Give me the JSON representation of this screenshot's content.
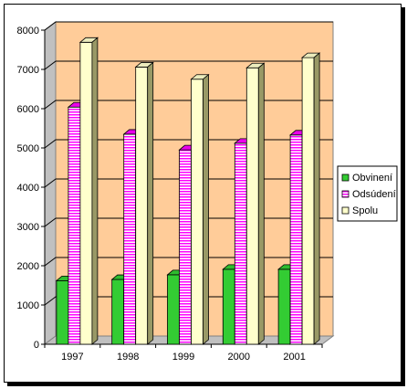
{
  "chart_data": {
    "type": "bar",
    "categories": [
      "1997",
      "1998",
      "1999",
      "2000",
      "2001"
    ],
    "series": [
      {
        "name": "Obvinení",
        "values": [
          1620,
          1650,
          1770,
          1910,
          1910
        ],
        "color": "#33cc33"
      },
      {
        "name": "Odsúdení",
        "values": [
          6040,
          5350,
          4950,
          5120,
          5330
        ],
        "color": "#ff00ff"
      },
      {
        "name": "Spolu",
        "values": [
          7690,
          7060,
          6750,
          7040,
          7300
        ],
        "color": "#ffffcc"
      }
    ],
    "ylim": [
      0,
      8000
    ],
    "yticks": [
      "0",
      "1000",
      "2000",
      "3000",
      "4000",
      "5000",
      "6000",
      "7000",
      "8000"
    ],
    "grid": true,
    "legend_position": "right",
    "wall_color": "#ffcc99",
    "style": "3d-clustered-column"
  }
}
